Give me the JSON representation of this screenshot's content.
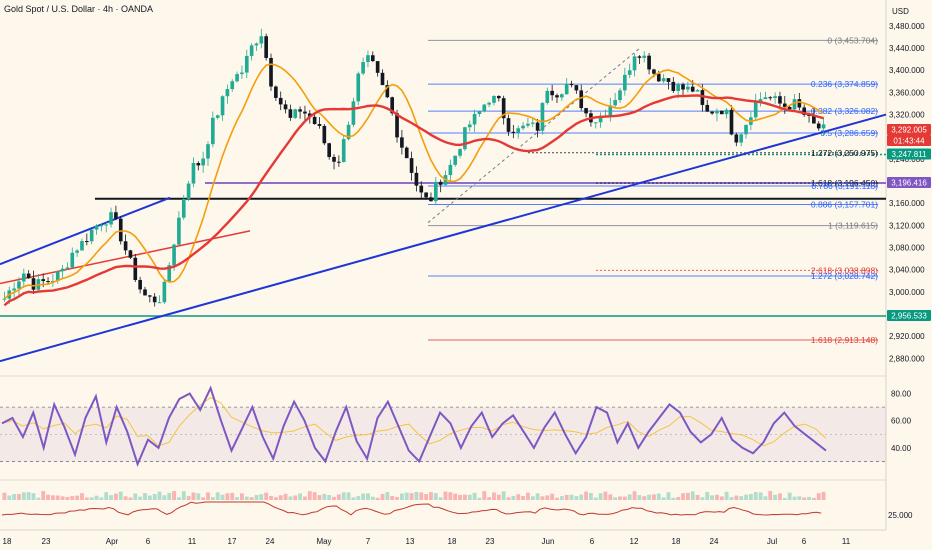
{
  "header": {
    "title": "Gold Spot / U.S. Dollar · 4h · OANDA"
  },
  "currency_label": "USD",
  "chart_data": [
    {
      "type": "candlestick",
      "title": "Gold Spot / U.S. Dollar · 4h · OANDA",
      "ylim": [
        2850,
        3505
      ],
      "y_ticks": [
        3480,
        3440,
        3400,
        3360,
        3320,
        3280,
        3240,
        3200,
        3160,
        3120,
        3080,
        3040,
        3000,
        2960,
        2920,
        2880
      ],
      "y_tick_labels": [
        "3,480.000",
        "3,440.000",
        "3,400.000",
        "3,360.000",
        "3,320.000",
        "3,280.000",
        "3,240.000",
        "3,200.000",
        "3,160.000",
        "3,120.000",
        "3,080.000",
        "3,040.000",
        "3,000.000",
        "2,960.000",
        "2,920.000",
        "2,880.000"
      ],
      "x_ticks": [
        "18",
        "23",
        "Apr",
        "6",
        "11",
        "17",
        "24",
        "May",
        "7",
        "13",
        "18",
        "23",
        "Jun",
        "6",
        "12",
        "18",
        "24",
        "Jul",
        "6",
        "11"
      ],
      "candle_color_up": "#22ab94",
      "candle_color_down": "#131722",
      "price_path": [
        [
          "Mar 18",
          2988
        ],
        [
          "Mar 19",
          3015
        ],
        [
          "Mar 20",
          3035
        ],
        [
          "Mar 21",
          3012
        ],
        [
          "Mar 24",
          3018
        ],
        [
          "Mar 25",
          3025
        ],
        [
          "Mar 26",
          3040
        ],
        [
          "Mar 27",
          3075
        ],
        [
          "Mar 28",
          3090
        ],
        [
          "Mar 31",
          3115
        ],
        [
          "Apr 1",
          3130
        ],
        [
          "Apr 2",
          3135
        ],
        [
          "Apr 3",
          3090
        ],
        [
          "Apr 4",
          3040
        ],
        [
          "Apr 6",
          2995
        ],
        [
          "Apr 7",
          2985
        ],
        [
          "Apr 8",
          2990
        ],
        [
          "Apr 9",
          3075
        ],
        [
          "Apr 10",
          3160
        ],
        [
          "Apr 11",
          3225
        ],
        [
          "Apr 14",
          3235
        ],
        [
          "Apr 15",
          3300
        ],
        [
          "Apr 16",
          3340
        ],
        [
          "Apr 17",
          3385
        ],
        [
          "Apr 18",
          3395
        ],
        [
          "Apr 21",
          3440
        ],
        [
          "Apr 22",
          3470
        ],
        [
          "Apr 23",
          3380
        ],
        [
          "Apr 24",
          3340
        ],
        [
          "Apr 25",
          3310
        ],
        [
          "Apr 28",
          3330
        ],
        [
          "Apr 29",
          3315
        ],
        [
          "Apr 30",
          3290
        ],
        [
          "May 1",
          3240
        ],
        [
          "May 2",
          3240
        ],
        [
          "May 5",
          3320
        ],
        [
          "May 6",
          3400
        ],
        [
          "May 7",
          3420
        ],
        [
          "May 8",
          3380
        ],
        [
          "May 9",
          3340
        ],
        [
          "May 12",
          3275
        ],
        [
          "May 13",
          3235
        ],
        [
          "May 14",
          3180
        ],
        [
          "May 15",
          3160
        ],
        [
          "May 16",
          3200
        ],
        [
          "May 19",
          3220
        ],
        [
          "May 20",
          3260
        ],
        [
          "May 21",
          3300
        ],
        [
          "May 22",
          3320
        ],
        [
          "May 23",
          3350
        ],
        [
          "May 26",
          3345
        ],
        [
          "May 27",
          3300
        ],
        [
          "May 28",
          3290
        ],
        [
          "May 29",
          3300
        ],
        [
          "May 30",
          3295
        ],
        [
          "Jun 2",
          3370
        ],
        [
          "Jun 3",
          3360
        ],
        [
          "Jun 4",
          3375
        ],
        [
          "Jun 5",
          3355
        ],
        [
          "Jun 6",
          3320
        ],
        [
          "Jun 9",
          3310
        ],
        [
          "Jun 10",
          3330
        ],
        [
          "Jun 11",
          3355
        ],
        [
          "Jun 12",
          3390
        ],
        [
          "Jun 13",
          3440
        ],
        [
          "Jun 16",
          3420
        ],
        [
          "Jun 17",
          3390
        ],
        [
          "Jun 18",
          3385
        ],
        [
          "Jun 19",
          3370
        ],
        [
          "Jun 20",
          3365
        ],
        [
          "Jun 23",
          3365
        ],
        [
          "Jun 24",
          3320
        ],
        [
          "Jun 25",
          3330
        ],
        [
          "Jun 26",
          3330
        ],
        [
          "Jun 27",
          3275
        ],
        [
          "Jun 30",
          3300
        ],
        [
          "Jul 1",
          3340
        ],
        [
          "Jul 2",
          3355
        ],
        [
          "Jul 3",
          3345
        ],
        [
          "Jul 4",
          3335
        ],
        [
          "Jul 6",
          3340
        ],
        [
          "Jul 7",
          3320
        ],
        [
          "Jul 8",
          3300
        ],
        [
          "Jul 9",
          3292
        ]
      ]
    },
    {
      "type": "line",
      "title": "RSI",
      "ylim": [
        20,
        90
      ],
      "y_ticks": [
        80,
        60,
        40
      ],
      "y_tick_labels": [
        "80.00",
        "60.00",
        "40.00"
      ],
      "bands": [
        70,
        30
      ],
      "series_color": "#7e57c2",
      "signal_color": "#f6c344",
      "values": [
        58,
        62,
        48,
        66,
        40,
        72,
        55,
        35,
        62,
        78,
        44,
        70,
        52,
        28,
        46,
        40,
        62,
        76,
        80,
        68,
        84,
        60,
        38,
        54,
        70,
        48,
        32,
        56,
        74,
        60,
        40,
        30,
        52,
        70,
        45,
        32,
        62,
        74,
        56,
        38,
        30,
        48,
        66,
        58,
        40,
        56,
        66,
        48,
        58,
        64,
        52,
        40,
        55,
        66,
        50,
        36,
        48,
        70,
        66,
        44,
        58,
        40,
        52,
        62,
        72,
        66,
        52,
        44,
        50,
        62,
        46,
        40,
        36,
        44,
        58,
        66,
        56,
        50,
        44,
        38
      ]
    },
    {
      "type": "line",
      "title": "Lower indicator",
      "y_ticks": [
        25
      ],
      "y_tick_labels": [
        "25.000"
      ],
      "series_color": "#c0392b"
    }
  ],
  "fib_levels": [
    {
      "label": "0 (3,453.704)",
      "value": 3453.704,
      "color": "#787b86"
    },
    {
      "label": "0.236 (3,374.859)",
      "value": 3374.859,
      "color": "#2962ff"
    },
    {
      "label": "0.382 (3,326.082)",
      "value": 3326.082,
      "color": "#2962ff"
    },
    {
      "label": "0.5 (3,286.659)",
      "value": 3286.659,
      "color": "#2962ff"
    },
    {
      "label": "1.272 (3,250.975)",
      "value": 3250.975,
      "color": "#131722"
    },
    {
      "label": "1.618 (3,196.450)",
      "value": 3196.45,
      "color": "#131722"
    },
    {
      "label": "0.786 (3,191.118)",
      "value": 3191.118,
      "color": "#2962ff"
    },
    {
      "label": "0.886 (3,157.701)",
      "value": 3157.701,
      "color": "#2962ff"
    },
    {
      "label": "1 (3,119.615)",
      "value": 3119.615,
      "color": "#787b86"
    },
    {
      "label": "2.618 (3,038.898)",
      "value": 3038.898,
      "color": "#e53935"
    },
    {
      "label": "1.272 (3,028.742)",
      "value": 3028.742,
      "color": "#2962ff"
    },
    {
      "label": "1.618 (2,913.148)",
      "value": 2913.148,
      "color": "#e53935"
    }
  ],
  "price_tags": [
    {
      "label": "3,292.005",
      "value": 3292.005,
      "color": "#e53935"
    },
    {
      "label": "01:43:44",
      "value": 3292.005,
      "color": "#e53935"
    },
    {
      "label": "3,247.811",
      "value": 3247.811,
      "color": "#089981"
    },
    {
      "label": "3,196.416",
      "value": 3196.416,
      "color": "#7e57c2"
    },
    {
      "label": "2,956.533",
      "value": 2956.533,
      "color": "#089981"
    }
  ],
  "horizontal_levels": [
    {
      "value": 3196.416,
      "color": "#7e57c2"
    },
    {
      "value": 3168,
      "color": "#131722"
    },
    {
      "value": 2956.533,
      "color": "#089981"
    },
    {
      "value": 3247.811,
      "color": "#089981"
    }
  ],
  "colors": {
    "background": "#fdf7ec",
    "ma_fast": "#f59e0b",
    "ma_slow": "#e53935",
    "trendline": "#1f35d6"
  }
}
